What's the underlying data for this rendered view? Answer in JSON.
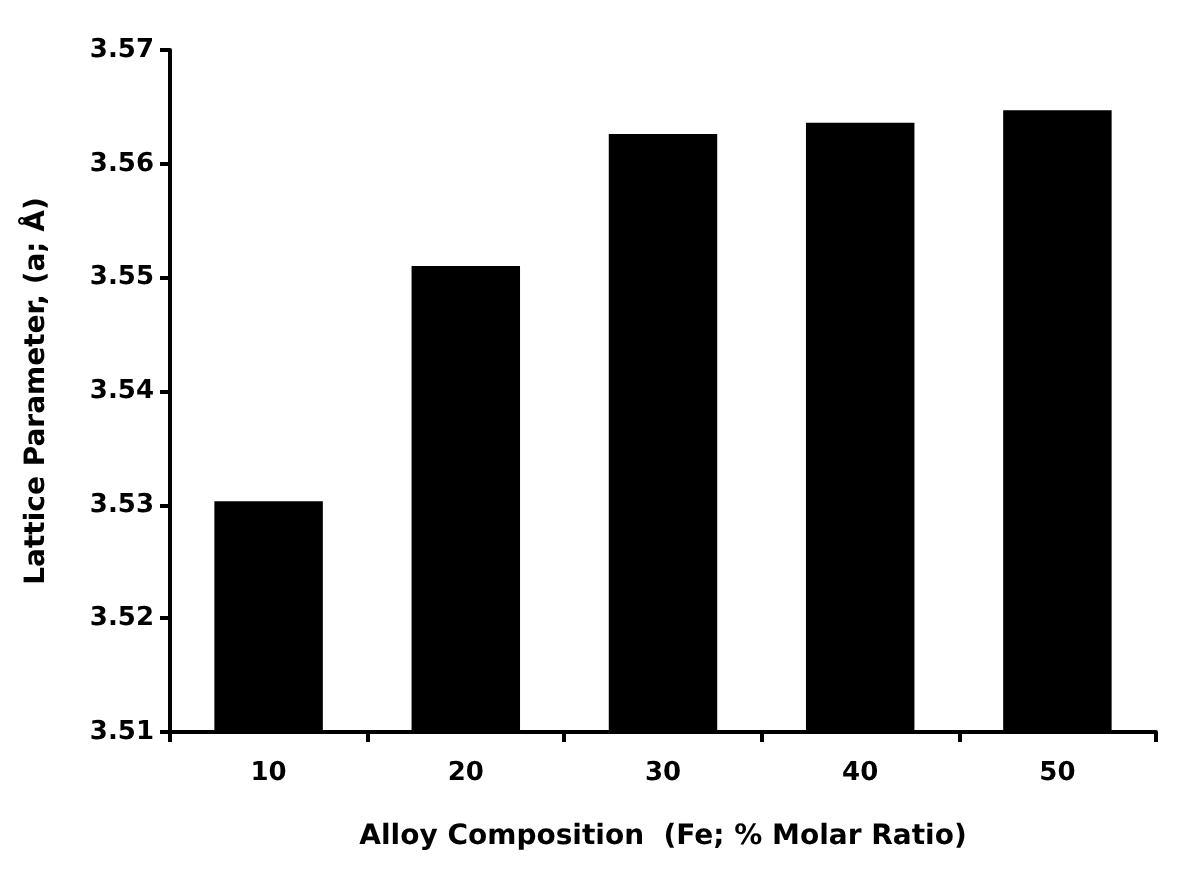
{
  "chart_data": {
    "type": "bar",
    "xlabel": "Alloy Composition  (Fe; % Molar Ratio)",
    "ylabel": "Lattice Parameter, (a; Å)",
    "categories": [
      "10",
      "20",
      "30",
      "40",
      "50"
    ],
    "values": [
      3.5303,
      3.551,
      3.5626,
      3.5636,
      3.5647
    ],
    "color": "#000000",
    "ylim": [
      3.51,
      3.57
    ],
    "yticks": [
      3.51,
      3.52,
      3.53,
      3.54,
      3.55,
      3.56,
      3.57
    ],
    "grid": false
  }
}
